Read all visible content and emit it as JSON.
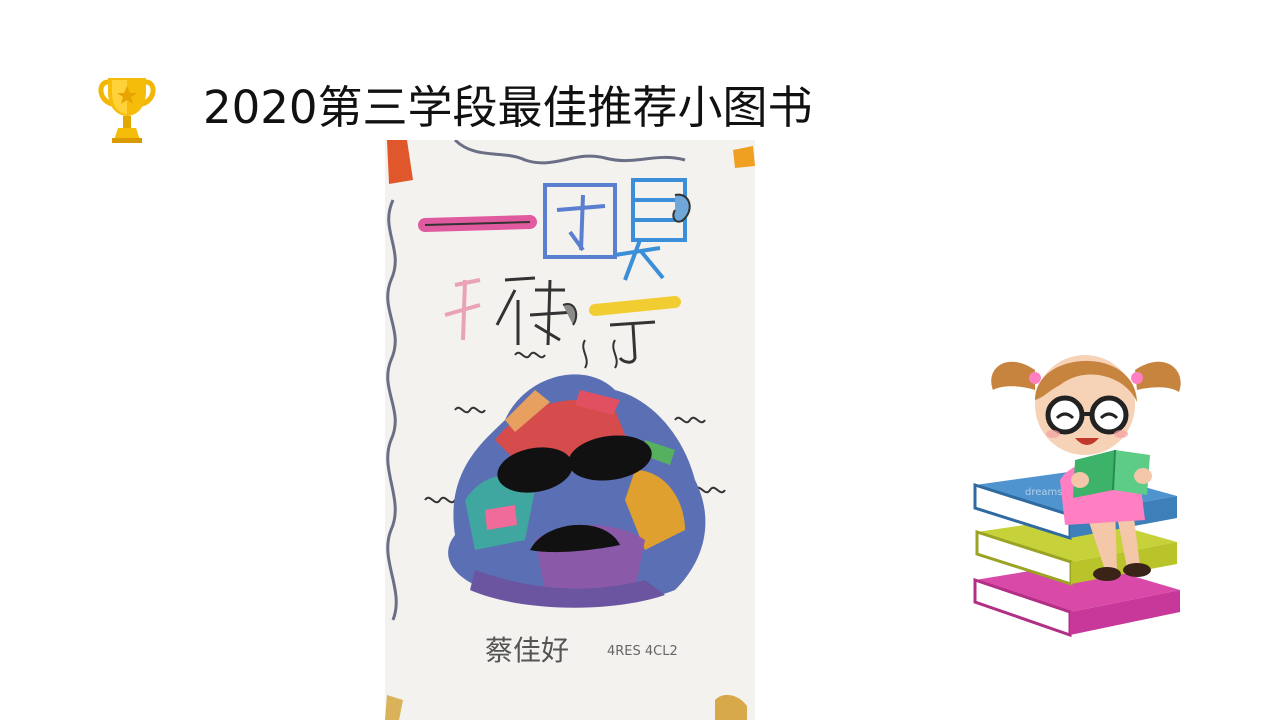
{
  "slide": {
    "title": "2020第三学段最佳推荐小图书"
  },
  "book_cover": {
    "title_line1": "一团臭",
    "title_line2": "袜子",
    "author_signature": "蔡佳好",
    "class_note": "4RES 4CL2"
  },
  "watermark": "dreamstime",
  "icons": {
    "trophy": "trophy-icon",
    "girl": "girl-reading-on-books-illustration"
  },
  "colors": {
    "trophy_gold": "#f2b705",
    "book_blue": "#3d7fb8",
    "book_green": "#b9c42b",
    "book_pink": "#c8389a"
  }
}
